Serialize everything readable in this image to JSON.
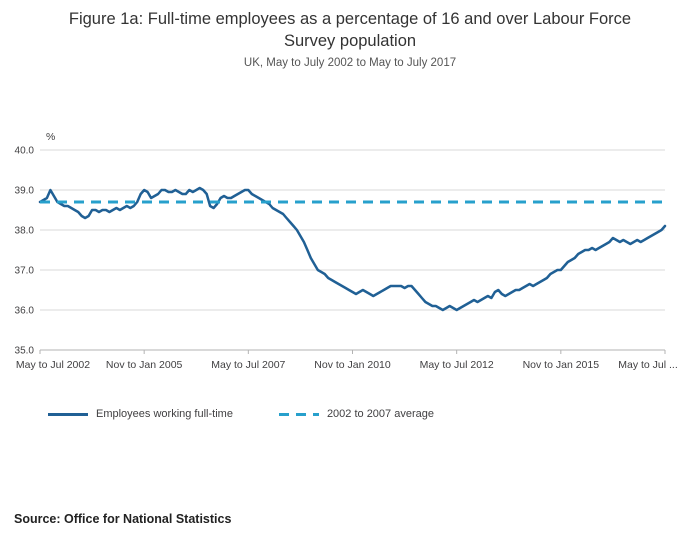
{
  "title": "Figure 1a: Full-time employees as a percentage of 16 and over Labour Force Survey population",
  "subtitle": "UK, May to July 2002 to May to July 2017",
  "source": "Source: Office for National Statistics",
  "legend": {
    "series1": "Employees working full-time",
    "series2": "2002 to 2007 average"
  },
  "colors": {
    "line": "#206095",
    "average": "#27a0cc",
    "grid": "#d9d9d9",
    "axis": "#b3b3b3",
    "tick_text": "#414042"
  },
  "chart_data": {
    "type": "line",
    "title": "Figure 1a: Full-time employees as a percentage of 16 and over Labour Force Survey population",
    "subtitle": "UK, May to July 2002 to May to July 2017",
    "unit_label": "%",
    "ylim": [
      35.0,
      40.0
    ],
    "yticks": [
      35.0,
      36.0,
      37.0,
      38.0,
      39.0,
      40.0
    ],
    "x_ticks": [
      {
        "index": 0,
        "label": "May to Jul 2002"
      },
      {
        "index": 30,
        "label": "Nov to Jan 2005"
      },
      {
        "index": 60,
        "label": "May to Jul 2007"
      },
      {
        "index": 90,
        "label": "Nov to Jan 2010"
      },
      {
        "index": 120,
        "label": "May to Jul 2012"
      },
      {
        "index": 150,
        "label": "Nov to Jan 2015"
      },
      {
        "index": 180,
        "label": "May to Jul ..."
      }
    ],
    "legend_position": "bottom",
    "grid": "horizontal",
    "series": [
      {
        "name": "Employees working full-time",
        "type": "line",
        "values": [
          38.7,
          38.75,
          38.8,
          39.0,
          38.85,
          38.7,
          38.65,
          38.6,
          38.6,
          38.55,
          38.5,
          38.45,
          38.35,
          38.3,
          38.35,
          38.5,
          38.5,
          38.45,
          38.5,
          38.5,
          38.45,
          38.5,
          38.55,
          38.5,
          38.55,
          38.6,
          38.55,
          38.6,
          38.7,
          38.9,
          39.0,
          38.95,
          38.8,
          38.85,
          38.9,
          39.0,
          39.0,
          38.95,
          38.95,
          39.0,
          38.95,
          38.9,
          38.9,
          39.0,
          38.95,
          39.0,
          39.05,
          39.0,
          38.9,
          38.6,
          38.55,
          38.65,
          38.8,
          38.85,
          38.8,
          38.8,
          38.85,
          38.9,
          38.95,
          39.0,
          39.0,
          38.9,
          38.85,
          38.8,
          38.75,
          38.7,
          38.65,
          38.55,
          38.5,
          38.45,
          38.4,
          38.3,
          38.2,
          38.1,
          38.0,
          37.85,
          37.7,
          37.5,
          37.3,
          37.15,
          37.0,
          36.95,
          36.9,
          36.8,
          36.75,
          36.7,
          36.65,
          36.6,
          36.55,
          36.5,
          36.45,
          36.4,
          36.45,
          36.5,
          36.45,
          36.4,
          36.35,
          36.4,
          36.45,
          36.5,
          36.55,
          36.6,
          36.6,
          36.6,
          36.6,
          36.55,
          36.6,
          36.6,
          36.5,
          36.4,
          36.3,
          36.2,
          36.15,
          36.1,
          36.1,
          36.05,
          36.0,
          36.05,
          36.1,
          36.05,
          36.0,
          36.05,
          36.1,
          36.15,
          36.2,
          36.25,
          36.2,
          36.25,
          36.3,
          36.35,
          36.3,
          36.45,
          36.5,
          36.4,
          36.35,
          36.4,
          36.45,
          36.5,
          36.5,
          36.55,
          36.6,
          36.65,
          36.6,
          36.65,
          36.7,
          36.75,
          36.8,
          36.9,
          36.95,
          37.0,
          37.0,
          37.1,
          37.2,
          37.25,
          37.3,
          37.4,
          37.45,
          37.5,
          37.5,
          37.55,
          37.5,
          37.55,
          37.6,
          37.65,
          37.7,
          37.8,
          37.75,
          37.7,
          37.75,
          37.7,
          37.65,
          37.7,
          37.75,
          37.7,
          37.75,
          37.8,
          37.85,
          37.9,
          37.95,
          38.0,
          38.1
        ]
      },
      {
        "name": "2002 to 2007 average",
        "type": "constant-line",
        "value": 38.7
      }
    ]
  }
}
